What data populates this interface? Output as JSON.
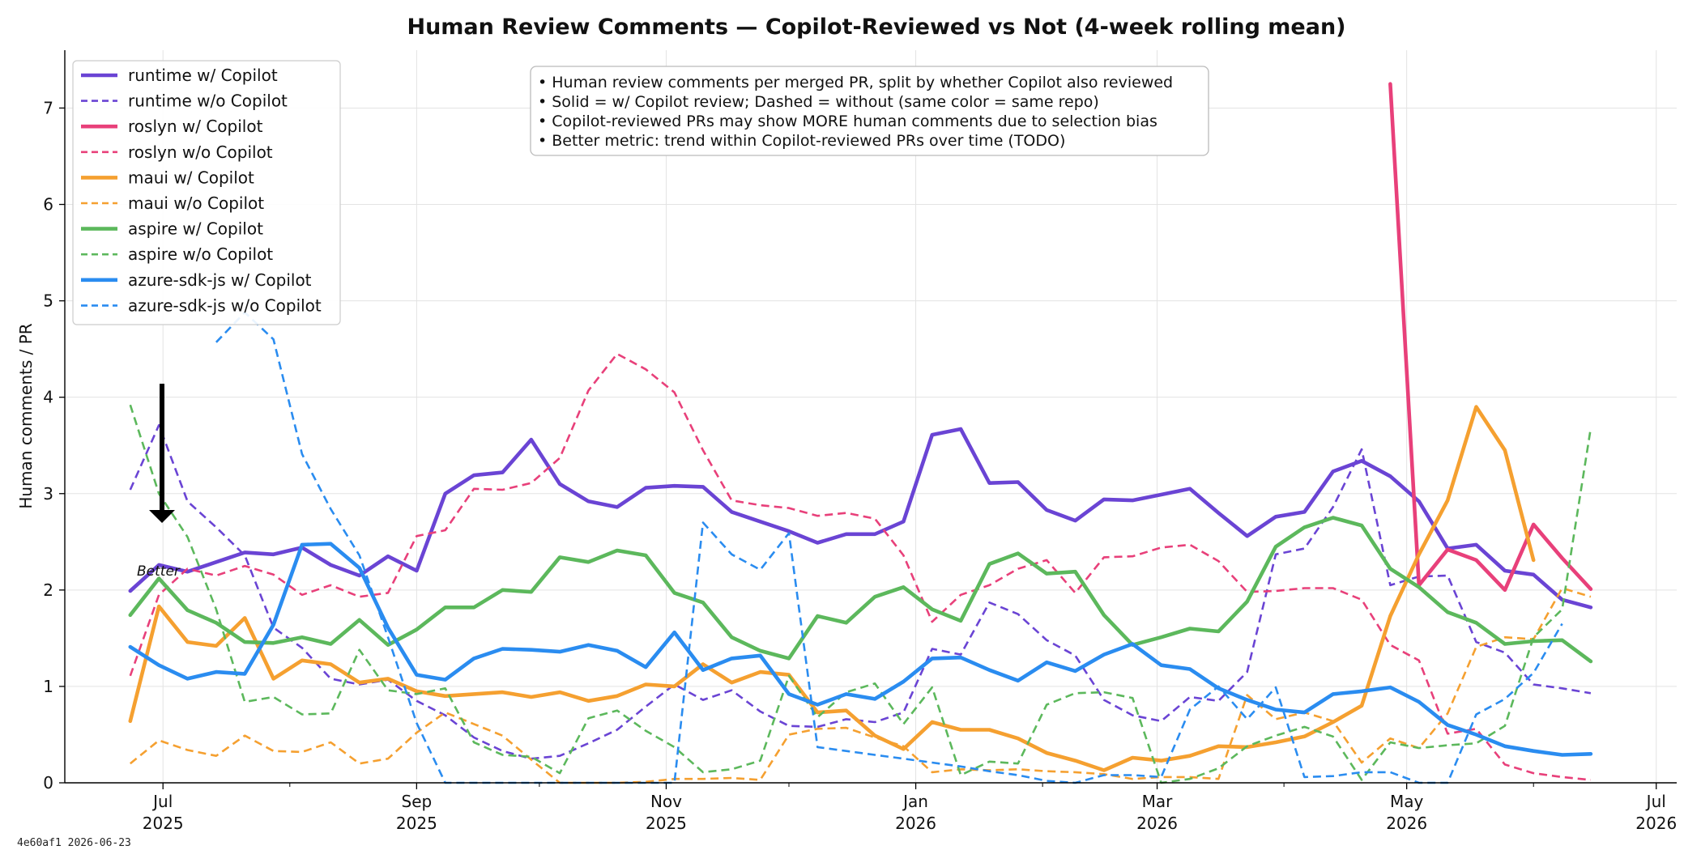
{
  "chart_data": {
    "type": "line",
    "title": "Human Review Comments — Copilot-Reviewed vs Not (4-week rolling mean)",
    "ylabel": "Human comments / PR",
    "xlabel": "",
    "ylim": [
      0,
      7.6
    ],
    "xlim": [
      "2025-06-07",
      "2026-07-06"
    ],
    "y_ticks": [
      0,
      1,
      2,
      3,
      4,
      5,
      6,
      7
    ],
    "x_ticks": [
      {
        "date": "2025-07-01",
        "label1": "Jul",
        "label2": "2025"
      },
      {
        "date": "2025-09-01",
        "label1": "Sep",
        "label2": "2025"
      },
      {
        "date": "2025-11-01",
        "label1": "Nov",
        "label2": "2025"
      },
      {
        "date": "2026-01-01",
        "label1": "Jan",
        "label2": "2026"
      },
      {
        "date": "2026-03-01",
        "label1": "Mar",
        "label2": "2026"
      },
      {
        "date": "2026-05-01",
        "label1": "May",
        "label2": "2026"
      },
      {
        "date": "2026-07-01",
        "label1": "Jul",
        "label2": "2026"
      }
    ],
    "grid": true,
    "legend_position": "top-left",
    "annotation_box": [
      "• Human review comments per merged PR, split by whether Copilot also reviewed",
      "• Solid = w/ Copilot review; Dashed = without (same color = same repo)",
      "• Copilot-reviewed PRs may show MORE human comments due to selection bias",
      "• Better metric: trend within Copilot-reviewed PRs over time (TODO)"
    ],
    "arrow_label": "Better",
    "footer": "4e60af1  2026-06-23",
    "series": [
      {
        "name": "runtime w/ Copilot",
        "color": "#6a44d4",
        "style": "solid",
        "start": "2025-06-23",
        "values": [
          1.99,
          2.26,
          2.19,
          2.29,
          2.39,
          2.37,
          2.44,
          2.26,
          2.15,
          2.35,
          2.2,
          3.0,
          3.19,
          3.22,
          3.56,
          3.1,
          2.92,
          2.86,
          3.06,
          3.08,
          3.07,
          2.81,
          2.71,
          2.61,
          2.49,
          2.58,
          2.58,
          2.71,
          3.61,
          3.67,
          3.11,
          3.12,
          2.83,
          2.72,
          2.94,
          2.93,
          2.99,
          3.05,
          2.8,
          2.56,
          2.76,
          2.81,
          3.23,
          3.34,
          3.18,
          2.92,
          2.43,
          2.47,
          2.2,
          2.16,
          1.9,
          1.82
        ]
      },
      {
        "name": "runtime w/o Copilot",
        "color": "#6a44d4",
        "style": "dashed",
        "start": "2025-06-23",
        "values": [
          3.04,
          3.71,
          2.92,
          2.65,
          2.36,
          1.61,
          1.4,
          1.08,
          1.02,
          1.07,
          0.85,
          0.7,
          0.47,
          0.33,
          0.25,
          0.28,
          0.41,
          0.55,
          0.79,
          1.02,
          0.86,
          0.96,
          0.74,
          0.59,
          0.58,
          0.66,
          0.63,
          0.73,
          1.39,
          1.33,
          1.87,
          1.75,
          1.48,
          1.32,
          0.86,
          0.7,
          0.64,
          0.89,
          0.85,
          1.15,
          2.37,
          2.43,
          2.86,
          3.46,
          2.05,
          2.14,
          2.15,
          1.46,
          1.35,
          1.02,
          0.98,
          0.93
        ]
      },
      {
        "name": "roslyn w/ Copilot",
        "color": "#e8407a",
        "style": "solid",
        "start": "2026-04-27",
        "values": [
          7.25,
          2.05,
          2.42,
          2.31,
          2.0,
          2.68,
          2.33,
          2.01
        ]
      },
      {
        "name": "roslyn w/o Copilot",
        "color": "#e8407a",
        "style": "dashed",
        "start": "2025-06-23",
        "values": [
          1.11,
          1.95,
          2.22,
          2.15,
          2.25,
          2.16,
          1.95,
          2.05,
          1.93,
          1.97,
          2.56,
          2.62,
          3.05,
          3.04,
          3.11,
          3.37,
          4.07,
          4.45,
          4.29,
          4.05,
          3.45,
          2.93,
          2.88,
          2.85,
          2.77,
          2.8,
          2.74,
          2.36,
          1.67,
          1.95,
          2.05,
          2.22,
          2.31,
          1.97,
          2.34,
          2.35,
          2.44,
          2.47,
          2.3,
          1.98,
          1.99,
          2.02,
          2.02,
          1.9,
          1.43,
          1.27,
          0.51,
          0.56,
          0.19,
          0.1,
          0.06,
          0.03
        ]
      },
      {
        "name": "maui w/ Copilot",
        "color": "#f5a030",
        "style": "solid",
        "start": "2025-06-23",
        "values": [
          0.64,
          1.83,
          1.46,
          1.42,
          1.71,
          1.08,
          1.27,
          1.23,
          1.04,
          1.08,
          0.95,
          0.9,
          0.92,
          0.94,
          0.89,
          0.94,
          0.85,
          0.9,
          1.02,
          1.0,
          1.23,
          1.04,
          1.15,
          1.12,
          0.73,
          0.75,
          0.49,
          0.35,
          0.63,
          0.55,
          0.55,
          0.46,
          0.31,
          0.23,
          0.13,
          0.26,
          0.23,
          0.28,
          0.38,
          0.37,
          0.42,
          0.48,
          0.63,
          0.8,
          1.73,
          2.37,
          2.93,
          3.9,
          3.45,
          2.31
        ]
      },
      {
        "name": "maui w/o Copilot",
        "color": "#f5a030",
        "style": "dashed",
        "start": "2025-06-23",
        "values": [
          0.2,
          0.44,
          0.34,
          0.28,
          0.49,
          0.33,
          0.32,
          0.42,
          0.2,
          0.25,
          0.52,
          0.73,
          0.61,
          0.49,
          0.24,
          0.0,
          0.0,
          0.0,
          0.01,
          0.04,
          0.04,
          0.05,
          0.03,
          0.5,
          0.56,
          0.57,
          0.47,
          0.38,
          0.11,
          0.14,
          0.13,
          0.14,
          0.12,
          0.11,
          0.09,
          0.04,
          0.06,
          0.06,
          0.04,
          0.91,
          0.66,
          0.73,
          0.64,
          0.21,
          0.46,
          0.36,
          0.72,
          1.41,
          1.51,
          1.49,
          2.02,
          1.93
        ]
      },
      {
        "name": "aspire w/ Copilot",
        "color": "#5cb85c",
        "style": "solid",
        "start": "2025-06-23",
        "values": [
          1.74,
          2.12,
          1.79,
          1.66,
          1.46,
          1.45,
          1.51,
          1.44,
          1.69,
          1.43,
          1.59,
          1.82,
          1.82,
          2.0,
          1.98,
          2.34,
          2.29,
          2.41,
          2.36,
          1.97,
          1.87,
          1.51,
          1.37,
          1.29,
          1.73,
          1.66,
          1.93,
          2.03,
          1.8,
          1.68,
          2.27,
          2.38,
          2.17,
          2.19,
          1.74,
          1.43,
          1.51,
          1.6,
          1.57,
          1.88,
          2.45,
          2.65,
          2.75,
          2.67,
          2.22,
          2.03,
          1.77,
          1.66,
          1.44,
          1.47,
          1.48,
          1.26
        ]
      },
      {
        "name": "aspire w/o Copilot",
        "color": "#5cb85c",
        "style": "dashed",
        "start": "2025-06-23",
        "values": [
          3.92,
          3.0,
          2.55,
          1.8,
          0.84,
          0.89,
          0.71,
          0.72,
          1.38,
          0.96,
          0.92,
          0.98,
          0.42,
          0.29,
          0.27,
          0.1,
          0.67,
          0.75,
          0.54,
          0.37,
          0.11,
          0.14,
          0.23,
          1.11,
          0.68,
          0.94,
          1.03,
          0.61,
          0.99,
          0.08,
          0.22,
          0.2,
          0.81,
          0.93,
          0.94,
          0.88,
          0.0,
          0.04,
          0.15,
          0.38,
          0.49,
          0.58,
          0.48,
          0.03,
          0.42,
          0.36,
          0.39,
          0.41,
          0.59,
          1.51,
          1.8,
          3.68
        ]
      },
      {
        "name": "azure-sdk-js w/ Copilot",
        "color": "#2a8cf0",
        "style": "solid",
        "start": "2025-06-23",
        "values": [
          1.41,
          1.22,
          1.08,
          1.15,
          1.13,
          1.64,
          2.47,
          2.48,
          2.23,
          1.61,
          1.12,
          1.07,
          1.29,
          1.39,
          1.38,
          1.36,
          1.43,
          1.37,
          1.2,
          1.56,
          1.17,
          1.29,
          1.32,
          0.92,
          0.81,
          0.92,
          0.87,
          1.05,
          1.29,
          1.3,
          1.17,
          1.06,
          1.25,
          1.16,
          1.33,
          1.44,
          1.22,
          1.18,
          0.98,
          0.86,
          0.76,
          0.73,
          0.92,
          0.95,
          0.99,
          0.84,
          0.6,
          0.5,
          0.38,
          0.33,
          0.29,
          0.3
        ]
      },
      {
        "name": "azure-sdk-js w/o Copilot",
        "color": "#2a8cf0",
        "style": "dashed",
        "start": "2025-07-14",
        "values": [
          4.57,
          4.88,
          4.6,
          3.41,
          2.84,
          2.36,
          1.51,
          0.62,
          0.0,
          0.0,
          0.0,
          0.0,
          0.0,
          0.0,
          0.0,
          0.0,
          0.0,
          2.7,
          2.37,
          2.21,
          2.59,
          0.37,
          0.33,
          0.29,
          0.25,
          0.21,
          0.17,
          0.12,
          0.08,
          0.02,
          0.0,
          0.08,
          0.08,
          0.06,
          0.76,
          1.0,
          0.66,
          0.99,
          0.06,
          0.07,
          0.11,
          0.11,
          0.0,
          0.0,
          0.71,
          0.87,
          1.14,
          1.65
        ]
      }
    ]
  }
}
